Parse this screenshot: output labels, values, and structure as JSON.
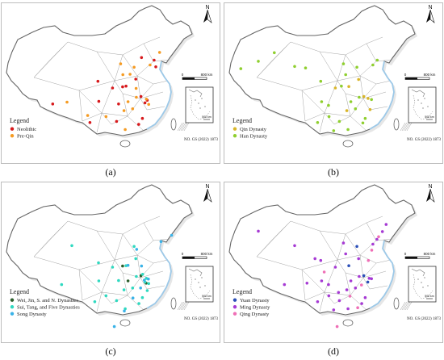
{
  "colors": {
    "land": "#e6e6e6",
    "land_inner": "#ffffff",
    "border": "#666666",
    "voronoi": "#8c8c8c",
    "coast": "#9dc9e8",
    "neolithic": "#d7191c",
    "pre_qin": "#f59b23",
    "qin": "#d9b62a",
    "han": "#8fcf2f",
    "wei_jin": "#2d5f2d",
    "sui_tang": "#2fd9c0",
    "song": "#3ab3e8",
    "yuan": "#2b4fb8",
    "ming": "#a63ad4",
    "qing": "#ef6fb6"
  },
  "icons": {
    "north_arrow": "north-arrow-icon",
    "scale_bar": "scale-bar-icon",
    "south_sea_inset": "south-china-sea-inset-icon"
  },
  "common": {
    "north_label": "N",
    "scale_zero": "0",
    "scale_max": "800 km",
    "inset_scale": "500 km",
    "map_id": "NO. GS (2022) 1873"
  },
  "panels": [
    {
      "id": "a",
      "caption": "(a)",
      "legend_title": "Legend",
      "legend": [
        {
          "label": "Neolithic",
          "color_key": "neolithic"
        },
        {
          "label": "Pre-Qin",
          "color_key": "pre_qin"
        }
      ],
      "points": [
        {
          "c": "neolithic",
          "lon": 119.3,
          "lat": 26.1
        },
        {
          "c": "neolithic",
          "lon": 120.2,
          "lat": 30.3
        },
        {
          "c": "neolithic",
          "lon": 118.8,
          "lat": 32.0
        },
        {
          "c": "neolithic",
          "lon": 113.6,
          "lat": 34.8
        },
        {
          "c": "neolithic",
          "lon": 112.4,
          "lat": 34.6
        },
        {
          "c": "neolithic",
          "lon": 108.9,
          "lat": 34.3
        },
        {
          "c": "neolithic",
          "lon": 111.0,
          "lat": 30.0
        },
        {
          "c": "neolithic",
          "lon": 104.1,
          "lat": 30.7
        },
        {
          "c": "neolithic",
          "lon": 103.8,
          "lat": 36.1
        },
        {
          "c": "neolithic",
          "lon": 117.0,
          "lat": 36.7
        },
        {
          "c": "neolithic",
          "lon": 121.0,
          "lat": 31.0
        },
        {
          "c": "neolithic",
          "lon": 123.4,
          "lat": 41.8
        },
        {
          "c": "neolithic",
          "lon": 124.0,
          "lat": 40.0
        },
        {
          "c": "neolithic",
          "lon": 119.0,
          "lat": 42.5
        },
        {
          "c": "neolithic",
          "lon": 88.0,
          "lat": 30.0
        },
        {
          "c": "neolithic",
          "lon": 101.0,
          "lat": 25.0
        },
        {
          "c": "neolithic",
          "lon": 110.3,
          "lat": 25.3
        },
        {
          "c": "neolithic",
          "lon": 118.0,
          "lat": 24.5
        },
        {
          "c": "pre_qin",
          "lon": 116.4,
          "lat": 39.9
        },
        {
          "c": "pre_qin",
          "lon": 115.0,
          "lat": 38.0
        },
        {
          "c": "pre_qin",
          "lon": 117.2,
          "lat": 31.8
        },
        {
          "c": "pre_qin",
          "lon": 114.3,
          "lat": 30.6
        },
        {
          "c": "pre_qin",
          "lon": 112.9,
          "lat": 28.2
        },
        {
          "c": "pre_qin",
          "lon": 115.9,
          "lat": 28.7
        },
        {
          "c": "pre_qin",
          "lon": 120.7,
          "lat": 31.3
        },
        {
          "c": "pre_qin",
          "lon": 121.5,
          "lat": 29.9
        },
        {
          "c": "pre_qin",
          "lon": 113.3,
          "lat": 23.1
        },
        {
          "c": "pre_qin",
          "lon": 106.6,
          "lat": 26.6
        },
        {
          "c": "pre_qin",
          "lon": 111.7,
          "lat": 40.8
        },
        {
          "c": "pre_qin",
          "lon": 112.5,
          "lat": 37.9
        },
        {
          "c": "pre_qin",
          "lon": 117.1,
          "lat": 34.2
        },
        {
          "c": "pre_qin",
          "lon": 122.0,
          "lat": 40.5
        },
        {
          "c": "pre_qin",
          "lon": 125.3,
          "lat": 43.9
        },
        {
          "c": "pre_qin",
          "lon": 93.0,
          "lat": 30.5
        },
        {
          "c": "pre_qin",
          "lon": 100.2,
          "lat": 26.9
        }
      ]
    },
    {
      "id": "b",
      "caption": "(b)",
      "legend_title": "Legend",
      "legend": [
        {
          "label": "Qin Dynasty",
          "color_key": "qin"
        },
        {
          "label": "Han Dynasty",
          "color_key": "han"
        }
      ],
      "points": [
        {
          "c": "qin",
          "lon": 108.9,
          "lat": 34.3
        },
        {
          "c": "qin",
          "lon": 113.6,
          "lat": 34.7
        },
        {
          "c": "qin",
          "lon": 118.8,
          "lat": 32.0
        },
        {
          "c": "qin",
          "lon": 120.3,
          "lat": 31.5
        },
        {
          "c": "qin",
          "lon": 117.0,
          "lat": 36.6
        },
        {
          "c": "qin",
          "lon": 112.9,
          "lat": 28.2
        },
        {
          "c": "qin",
          "lon": 121.0,
          "lat": 28.5
        },
        {
          "c": "han",
          "lon": 94.7,
          "lat": 40.1
        },
        {
          "c": "han",
          "lon": 98.5,
          "lat": 39.7
        },
        {
          "c": "han",
          "lon": 103.8,
          "lat": 36.1
        },
        {
          "c": "han",
          "lon": 75.9,
          "lat": 39.5
        },
        {
          "c": "han",
          "lon": 82.0,
          "lat": 41.5
        },
        {
          "c": "han",
          "lon": 87.6,
          "lat": 43.8
        },
        {
          "c": "han",
          "lon": 104.1,
          "lat": 30.6
        },
        {
          "c": "han",
          "lon": 106.5,
          "lat": 29.6
        },
        {
          "c": "han",
          "lon": 110.3,
          "lat": 25.3
        },
        {
          "c": "han",
          "lon": 113.3,
          "lat": 23.1
        },
        {
          "c": "han",
          "lon": 114.3,
          "lat": 30.6
        },
        {
          "c": "han",
          "lon": 115.9,
          "lat": 28.7
        },
        {
          "c": "han",
          "lon": 116.4,
          "lat": 39.9
        },
        {
          "c": "han",
          "lon": 112.5,
          "lat": 37.9
        },
        {
          "c": "han",
          "lon": 117.2,
          "lat": 31.8
        },
        {
          "c": "han",
          "lon": 119.3,
          "lat": 26.1
        },
        {
          "c": "han",
          "lon": 121.5,
          "lat": 31.2
        },
        {
          "c": "han",
          "lon": 122.0,
          "lat": 40.5
        },
        {
          "c": "han",
          "lon": 123.5,
          "lat": 41.8
        },
        {
          "c": "han",
          "lon": 111.0,
          "lat": 34.8
        },
        {
          "c": "han",
          "lon": 106.7,
          "lat": 26.6
        },
        {
          "c": "han",
          "lon": 102.7,
          "lat": 25.0
        },
        {
          "c": "han",
          "lon": 118.5,
          "lat": 24.9
        },
        {
          "c": "han",
          "lon": 111.7,
          "lat": 40.8
        },
        {
          "c": "han",
          "lon": 108.3,
          "lat": 22.8
        }
      ]
    },
    {
      "id": "c",
      "caption": "(c)",
      "legend_title": "Legend",
      "legend": [
        {
          "label": "Wei, Jin, S. and N. Dynasties",
          "color_key": "wei_jin"
        },
        {
          "label": "Sui, Tang, and Five Dynasties",
          "color_key": "sui_tang"
        },
        {
          "label": "Song Dynasty",
          "color_key": "song"
        }
      ],
      "points": [
        {
          "c": "wei_jin",
          "lon": 118.8,
          "lat": 32.0
        },
        {
          "c": "wei_jin",
          "lon": 114.3,
          "lat": 30.6
        },
        {
          "c": "wei_jin",
          "lon": 112.4,
          "lat": 34.6
        },
        {
          "c": "wei_jin",
          "lon": 120.6,
          "lat": 30.0
        },
        {
          "c": "sui_tang",
          "lon": 108.9,
          "lat": 34.3
        },
        {
          "c": "sui_tang",
          "lon": 104.1,
          "lat": 30.6
        },
        {
          "c": "sui_tang",
          "lon": 113.6,
          "lat": 34.7
        },
        {
          "c": "sui_tang",
          "lon": 117.0,
          "lat": 36.6
        },
        {
          "c": "sui_tang",
          "lon": 119.4,
          "lat": 32.4
        },
        {
          "c": "sui_tang",
          "lon": 120.2,
          "lat": 30.3
        },
        {
          "c": "sui_tang",
          "lon": 121.5,
          "lat": 29.9
        },
        {
          "c": "sui_tang",
          "lon": 120.7,
          "lat": 31.3
        },
        {
          "c": "sui_tang",
          "lon": 119.3,
          "lat": 26.1
        },
        {
          "c": "sui_tang",
          "lon": 113.3,
          "lat": 23.1
        },
        {
          "c": "sui_tang",
          "lon": 112.9,
          "lat": 28.2
        },
        {
          "c": "sui_tang",
          "lon": 115.9,
          "lat": 28.7
        },
        {
          "c": "sui_tang",
          "lon": 110.3,
          "lat": 25.3
        },
        {
          "c": "sui_tang",
          "lon": 106.6,
          "lat": 26.6
        },
        {
          "c": "sui_tang",
          "lon": 102.7,
          "lat": 25.0
        },
        {
          "c": "sui_tang",
          "lon": 94.7,
          "lat": 40.1
        },
        {
          "c": "sui_tang",
          "lon": 91.1,
          "lat": 29.6
        },
        {
          "c": "sui_tang",
          "lon": 111.0,
          "lat": 30.7
        },
        {
          "c": "sui_tang",
          "lon": 116.4,
          "lat": 39.9
        },
        {
          "c": "sui_tang",
          "lon": 118.1,
          "lat": 24.5
        },
        {
          "c": "sui_tang",
          "lon": 117.2,
          "lat": 31.8
        },
        {
          "c": "sui_tang",
          "lon": 121.0,
          "lat": 28.0
        },
        {
          "c": "sui_tang",
          "lon": 104.0,
          "lat": 35.5
        },
        {
          "c": "song",
          "lon": 121.4,
          "lat": 31.1
        },
        {
          "c": "song",
          "lon": 120.0,
          "lat": 30.8
        },
        {
          "c": "song",
          "lon": 114.3,
          "lat": 34.8
        },
        {
          "c": "song",
          "lon": 118.7,
          "lat": 28.7
        },
        {
          "c": "song",
          "lon": 116.0,
          "lat": 26.0
        },
        {
          "c": "song",
          "lon": 117.3,
          "lat": 39.1
        },
        {
          "c": "song",
          "lon": 125.8,
          "lat": 41.2
        },
        {
          "c": "song",
          "lon": 129.5,
          "lat": 42.9
        },
        {
          "c": "song",
          "lon": 113.0,
          "lat": 22.5
        },
        {
          "c": "song",
          "lon": 109.5,
          "lat": 18.3
        },
        {
          "c": "song",
          "lon": 119.0,
          "lat": 34.6
        }
      ]
    },
    {
      "id": "d",
      "caption": "(d)",
      "legend_title": "Legend",
      "legend": [
        {
          "label": "Yuan Dynasty",
          "color_key": "yuan"
        },
        {
          "label": "Ming Dynasty",
          "color_key": "ming"
        },
        {
          "label": "Qing Dynasty",
          "color_key": "qing"
        }
      ],
      "points": [
        {
          "c": "yuan",
          "lon": 116.4,
          "lat": 39.9
        },
        {
          "c": "yuan",
          "lon": 118.8,
          "lat": 32.0
        },
        {
          "c": "yuan",
          "lon": 120.2,
          "lat": 30.3
        },
        {
          "c": "yuan",
          "lon": 113.6,
          "lat": 34.7
        },
        {
          "c": "ming",
          "lon": 82.0,
          "lat": 44.0
        },
        {
          "c": "ming",
          "lon": 94.7,
          "lat": 40.1
        },
        {
          "c": "ming",
          "lon": 103.8,
          "lat": 36.1
        },
        {
          "c": "ming",
          "lon": 108.9,
          "lat": 34.3
        },
        {
          "c": "ming",
          "lon": 104.1,
          "lat": 30.6
        },
        {
          "c": "ming",
          "lon": 106.5,
          "lat": 29.6
        },
        {
          "c": "ming",
          "lon": 102.7,
          "lat": 25.0
        },
        {
          "c": "ming",
          "lon": 106.6,
          "lat": 26.6
        },
        {
          "c": "ming",
          "lon": 110.3,
          "lat": 25.3
        },
        {
          "c": "ming",
          "lon": 113.3,
          "lat": 23.1
        },
        {
          "c": "ming",
          "lon": 112.9,
          "lat": 28.2
        },
        {
          "c": "ming",
          "lon": 114.3,
          "lat": 30.6
        },
        {
          "c": "ming",
          "lon": 115.9,
          "lat": 28.7
        },
        {
          "c": "ming",
          "lon": 117.2,
          "lat": 31.8
        },
        {
          "c": "ming",
          "lon": 117.0,
          "lat": 36.6
        },
        {
          "c": "ming",
          "lon": 112.5,
          "lat": 37.9
        },
        {
          "c": "ming",
          "lon": 119.3,
          "lat": 26.1
        },
        {
          "c": "ming",
          "lon": 121.5,
          "lat": 31.2
        },
        {
          "c": "ming",
          "lon": 120.7,
          "lat": 31.3
        },
        {
          "c": "ming",
          "lon": 118.1,
          "lat": 24.5
        },
        {
          "c": "ming",
          "lon": 122.0,
          "lat": 40.5
        },
        {
          "c": "ming",
          "lon": 123.4,
          "lat": 41.8
        },
        {
          "c": "ming",
          "lon": 125.3,
          "lat": 43.9
        },
        {
          "c": "ming",
          "lon": 126.6,
          "lat": 45.8
        },
        {
          "c": "ming",
          "lon": 111.7,
          "lat": 40.8
        },
        {
          "c": "ming",
          "lon": 108.3,
          "lat": 22.8
        },
        {
          "c": "ming",
          "lon": 101.8,
          "lat": 36.6
        },
        {
          "c": "ming",
          "lon": 99.0,
          "lat": 30.0
        },
        {
          "c": "ming",
          "lon": 91.1,
          "lat": 29.6
        },
        {
          "c": "ming",
          "lon": 110.0,
          "lat": 27.5
        },
        {
          "c": "qing",
          "lon": 121.6,
          "lat": 38.9
        },
        {
          "c": "qing",
          "lon": 120.4,
          "lat": 36.1
        },
        {
          "c": "qing",
          "lon": 118.0,
          "lat": 29.5
        },
        {
          "c": "qing",
          "lon": 116.7,
          "lat": 23.4
        },
        {
          "c": "qing",
          "lon": 109.5,
          "lat": 18.3
        },
        {
          "c": "qing",
          "lon": 114.0,
          "lat": 26.5
        },
        {
          "c": "qing",
          "lon": 105.0,
          "lat": 33.0
        },
        {
          "c": "qing",
          "lon": 124.0,
          "lat": 42.5
        }
      ]
    }
  ]
}
